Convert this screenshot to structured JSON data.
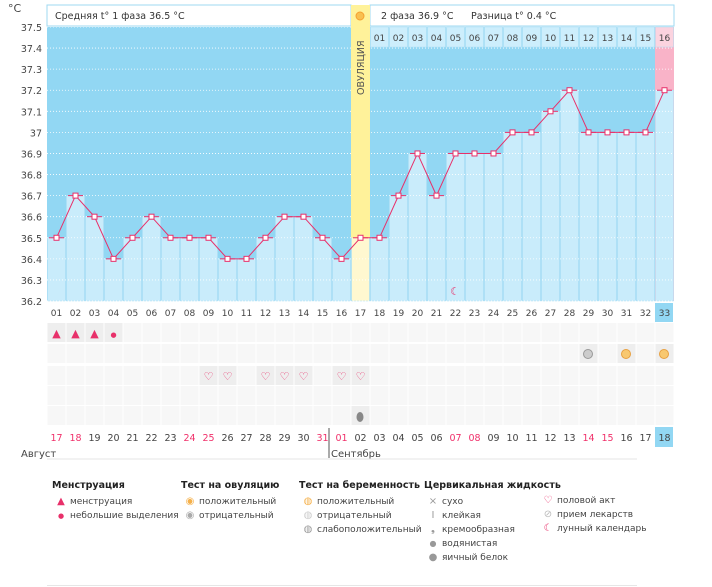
{
  "header": {
    "unit": "°C",
    "phase1": "Средняя t° 1 фаза 36.5 °C",
    "phase2": "2 фаза 36.9 °C",
    "difference": "Разница t° 0.4 °C",
    "ovulation_label": "ОВУЛЯЦИЯ"
  },
  "colors": {
    "dark": "#92d7f3",
    "light": "#c9ecfb",
    "line": "#e8306a",
    "ovulation": "#fff29a",
    "pink": "#f9b3c8"
  },
  "chart_data": {
    "type": "line",
    "ylim": [
      36.2,
      37.5
    ],
    "y_ticks": [
      "37.5",
      "37.4",
      "37.3",
      "37.2",
      "37.1",
      "37",
      "36.9",
      "36.8",
      "36.7",
      "36.6",
      "36.5",
      "36.4",
      "36.3",
      "36.2"
    ],
    "cycle_days": [
      "01",
      "02",
      "03",
      "04",
      "05",
      "06",
      "07",
      "08",
      "09",
      "10",
      "11",
      "12",
      "13",
      "14",
      "15",
      "16",
      "17",
      "18",
      "19",
      "20",
      "21",
      "22",
      "23",
      "24",
      "25",
      "26",
      "27",
      "28",
      "29",
      "30",
      "31",
      "32",
      "33"
    ],
    "temperatures": [
      36.5,
      36.7,
      36.6,
      36.4,
      36.5,
      36.6,
      36.5,
      36.5,
      36.5,
      36.4,
      36.4,
      36.5,
      36.6,
      36.6,
      36.5,
      36.4,
      36.5,
      36.5,
      36.7,
      36.9,
      36.7,
      36.9,
      36.9,
      36.9,
      37.0,
      37.0,
      37.1,
      37.2,
      37.0,
      37.0,
      37.0,
      37.0,
      37.2
    ],
    "phase2_days": [
      "01",
      "02",
      "03",
      "04",
      "05",
      "06",
      "07",
      "08",
      "09",
      "10",
      "11",
      "12",
      "13",
      "14",
      "15",
      "16"
    ],
    "ovulation_day": 17,
    "current_day": 33,
    "calendar_dates": [
      "17",
      "18",
      "19",
      "20",
      "21",
      "22",
      "23",
      "24",
      "25",
      "26",
      "27",
      "28",
      "29",
      "30",
      "31",
      "01",
      "02",
      "03",
      "04",
      "05",
      "06",
      "07",
      "08",
      "09",
      "10",
      "11",
      "12",
      "13",
      "14",
      "15",
      "16",
      "17",
      "18"
    ],
    "red_dates": [
      0,
      1,
      7,
      8,
      14,
      15,
      21,
      22,
      28,
      29
    ],
    "months": [
      "Август",
      "Сентябрь"
    ]
  },
  "markers": {
    "menstruation": [
      1,
      1,
      1,
      2,
      0,
      0,
      0,
      0,
      0,
      0,
      0,
      0,
      0,
      0,
      0,
      0,
      0,
      0,
      0,
      0,
      0,
      0,
      0,
      0,
      0,
      0,
      0,
      0,
      0,
      0,
      0,
      0,
      0
    ],
    "pregnancy_test": {
      "29": "weak",
      "31": "positive",
      "33": "positive"
    },
    "sex_days": [
      9,
      10,
      12,
      13,
      14,
      16,
      17
    ],
    "cervical_egg_white": [
      17
    ],
    "moon_day": 22
  },
  "legend": {
    "menstruation": {
      "title": "Менструация",
      "items": [
        "менструация",
        "небольшие выделения"
      ]
    },
    "ovulation_test": {
      "title": "Тест на овуляцию",
      "items": [
        "положительный",
        "отрицательный"
      ]
    },
    "pregnancy_test": {
      "title": "Тест на беременность",
      "items": [
        "положительный",
        "отрицательный",
        "слабоположительный"
      ]
    },
    "cervical": {
      "title": "Цервикальная жидкость",
      "items": [
        "сухо",
        "клейкая",
        "кремообразная",
        "водянистая",
        "яичный белок"
      ]
    },
    "other": {
      "items": [
        "половой акт",
        "прием лекарств",
        "лунный календарь"
      ]
    }
  }
}
